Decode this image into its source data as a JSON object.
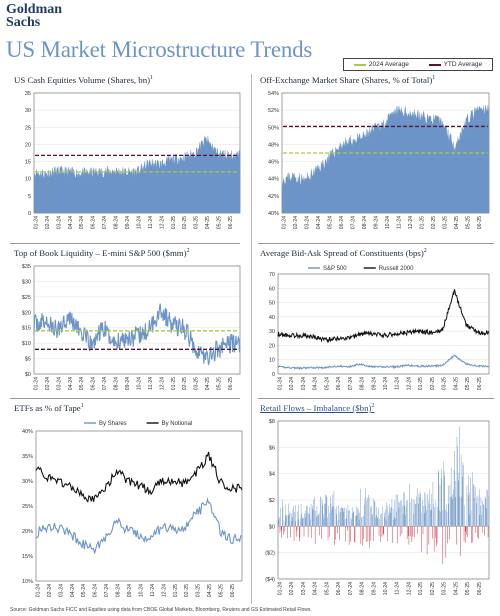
{
  "header": {
    "logo_line1": "Goldman",
    "logo_line2": "Sachs",
    "title": "US Market Microstructure Trends"
  },
  "legend": [
    {
      "label": "2024 Average",
      "color": "#a9c94f"
    },
    {
      "label": "YTD Average",
      "color": "#5a1232"
    }
  ],
  "colors": {
    "bar_blue": "#6d94c6",
    "dark": "#111111",
    "red": "#c8212f"
  },
  "source": "Source: Goldman Sachs FICC and Equities using data from CBOE Global Markets, Bloomberg, Reuters and GS Estimated Retail Flows.",
  "months": [
    "01-24",
    "02-24",
    "03-24",
    "04-24",
    "05-24",
    "06-24",
    "07-24",
    "08-24",
    "09-24",
    "10-24",
    "11-24",
    "12-24",
    "01-25",
    "02-25",
    "03-25",
    "04-25",
    "05-25",
    "06-25"
  ],
  "chart_data": [
    {
      "id": "volume",
      "type": "area",
      "title": "US Cash Equities Volume (Shares, bn)",
      "title_sup": "1",
      "ylim": [
        0,
        35
      ],
      "yticks": [
        "0",
        "5",
        "10",
        "15",
        "20",
        "25",
        "30",
        "35"
      ],
      "monthly_values": [
        11.7,
        11.5,
        12.2,
        12.0,
        11.6,
        11.8,
        12.0,
        12.3,
        11.9,
        12.1,
        14.5,
        14.2,
        15.5,
        16.2,
        17.5,
        21.5,
        17.5,
        16.9
      ],
      "reference_lines": {
        "avg_2024": 12.0,
        "ytd_avg": 16.8
      }
    },
    {
      "id": "offexchange",
      "type": "area",
      "title": "Off-Exchange Market Share (Shares, % of Total)",
      "title_sup": "1",
      "ylim": [
        40,
        54
      ],
      "yticks": [
        "40%",
        "42%",
        "44%",
        "46%",
        "48%",
        "50%",
        "52%",
        "54%"
      ],
      "monthly_values": [
        43.9,
        44.3,
        43.8,
        45.0,
        46.3,
        47.8,
        48.4,
        48.8,
        49.8,
        50.6,
        51.9,
        51.7,
        51.3,
        51.0,
        50.4,
        47.8,
        50.8,
        52.0
      ],
      "reference_lines": {
        "avg_2024": 47.0,
        "ytd_avg": 50.1
      }
    },
    {
      "id": "liquidity",
      "type": "line",
      "title": "Top of Book Liquidity – E-mini S&P 500 ($mm)",
      "title_sup": "2",
      "ylim": [
        0,
        35
      ],
      "yticks": [
        "$0",
        "$5",
        "$10",
        "$15",
        "$20",
        "$25",
        "$30",
        "$35"
      ],
      "monthly_values": [
        16,
        17,
        14,
        19,
        14,
        9,
        15,
        10,
        12,
        12,
        14,
        21,
        16,
        15,
        9,
        5,
        8,
        10
      ],
      "reference_lines": {
        "avg_2024": 14.0,
        "ytd_avg": 8.0
      }
    },
    {
      "id": "spread",
      "type": "line",
      "title": "Average Bid-Ask Spread of Constituents (bps)",
      "title_sup": "2",
      "ylim": [
        0,
        70
      ],
      "yticks": [
        "0",
        "10",
        "20",
        "30",
        "40",
        "50",
        "60",
        "70"
      ],
      "series": [
        {
          "name": "S&P 500",
          "monthly_values": [
            5.0,
            4.5,
            4.0,
            4.5,
            4.5,
            5.5,
            5.0,
            7.0,
            5.0,
            5.0,
            5.0,
            6.0,
            5.5,
            5.5,
            6.0,
            13.0,
            7.0,
            5.5
          ]
        },
        {
          "name": "Russell 2000",
          "monthly_values": [
            28,
            27,
            27,
            26,
            24,
            25,
            25,
            28,
            28,
            27,
            28,
            29,
            30,
            29,
            31,
            58,
            35,
            29
          ]
        }
      ]
    },
    {
      "id": "etf",
      "type": "line",
      "title": "ETFs as % of Tape",
      "title_sup": "1",
      "ylim": [
        10,
        40
      ],
      "yticks": [
        "10%",
        "15%",
        "20%",
        "25%",
        "30%",
        "35%",
        "40%"
      ],
      "series": [
        {
          "name": "By Shares",
          "monthly_values": [
            19.5,
            21,
            20.5,
            19.5,
            17.5,
            16,
            18.5,
            22,
            20,
            19,
            18.5,
            21,
            20,
            21,
            23.5,
            26,
            20,
            18.5
          ]
        },
        {
          "name": "By Notional",
          "monthly_values": [
            33,
            30.5,
            30,
            29,
            27,
            26,
            28.5,
            32,
            30,
            29,
            28,
            30,
            30,
            29.5,
            32,
            35,
            30,
            28.5
          ]
        }
      ]
    },
    {
      "id": "retail",
      "type": "bar",
      "title": "Retail Flows – Imbalance ($bn)",
      "title_sup": "2",
      "ylim": [
        -4,
        8
      ],
      "yticks": [
        "($4)",
        "($2)",
        "$0",
        "$2",
        "$4",
        "$6",
        "$8"
      ],
      "monthly_positive": [
        1.4,
        1.2,
        1.2,
        1.6,
        1.8,
        1.4,
        1.3,
        2.0,
        1.6,
        1.4,
        1.8,
        2.2,
        2.0,
        3.0,
        3.4,
        5.2,
        2.8,
        2.0
      ],
      "monthly_negative": [
        -0.6,
        -0.8,
        -0.6,
        -0.9,
        -1.0,
        -0.8,
        -0.9,
        -1.2,
        -0.8,
        -0.8,
        -1.0,
        -1.2,
        -1.4,
        -1.2,
        -1.8,
        -1.6,
        -0.8,
        -0.6
      ]
    }
  ]
}
